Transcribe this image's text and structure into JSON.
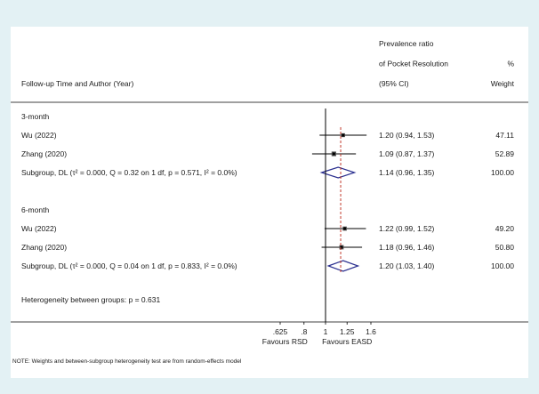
{
  "header": {
    "left": "Follow-up Time and Author (Year)",
    "effect_lines": [
      "Prevalence ratio",
      "of Pocket Resolution",
      "(95% CI)"
    ],
    "weight_lines": [
      "%",
      "Weight"
    ]
  },
  "chart_data": {
    "type": "forest",
    "title": "",
    "measure": "Prevalence ratio of Pocket Resolution",
    "null_value": 1,
    "log_scale": true,
    "xlim": [
      0.625,
      1.6
    ],
    "x_ticks": [
      0.625,
      0.8,
      1,
      1.25,
      1.6
    ],
    "x_tick_labels": [
      ".625",
      ".8",
      "1",
      "1.25",
      "1.6"
    ],
    "favours_left": "Favours RSD",
    "favours_right": "Favours EASD",
    "overall_line": 1.17,
    "groups": [
      {
        "name": "3-month",
        "studies": [
          {
            "label": "Wu (2022)",
            "estimate": 1.2,
            "lower": 0.94,
            "upper": 1.53,
            "ci_text": "1.20 (0.94, 1.53)",
            "weight": "47.11"
          },
          {
            "label": "Zhang (2020)",
            "estimate": 1.09,
            "lower": 0.87,
            "upper": 1.37,
            "ci_text": "1.09 (0.87, 1.37)",
            "weight": "52.89"
          }
        ],
        "subgroup": {
          "label": "Subgroup, DL (τ² = 0.000, Q = 0.32 on 1 df, p = 0.571, I² = 0.0%)",
          "estimate": 1.14,
          "lower": 0.96,
          "upper": 1.35,
          "ci_text": "1.14 (0.96, 1.35)",
          "weight": "100.00"
        }
      },
      {
        "name": "6-month",
        "studies": [
          {
            "label": "Wu (2022)",
            "estimate": 1.22,
            "lower": 0.99,
            "upper": 1.52,
            "ci_text": "1.22 (0.99, 1.52)",
            "weight": "49.20"
          },
          {
            "label": "Zhang (2020)",
            "estimate": 1.18,
            "lower": 0.96,
            "upper": 1.46,
            "ci_text": "1.18 (0.96, 1.46)",
            "weight": "50.80"
          }
        ],
        "subgroup": {
          "label": "Subgroup, DL (τ² = 0.000, Q = 0.04 on 1 df, p = 0.833, I² = 0.0%)",
          "estimate": 1.2,
          "lower": 1.03,
          "upper": 1.4,
          "ci_text": "1.20 (1.03, 1.40)",
          "weight": "100.00"
        }
      }
    ],
    "heterogeneity": "Heterogeneity between groups: p = 0.631"
  },
  "note": "NOTE: Weights and between-subgroup heterogeneity test are from random-effects model",
  "colors": {
    "diamond": "#2a2f8f",
    "overall_line": "#c0392b",
    "ci": "#000000",
    "background": "#e3f1f4"
  }
}
